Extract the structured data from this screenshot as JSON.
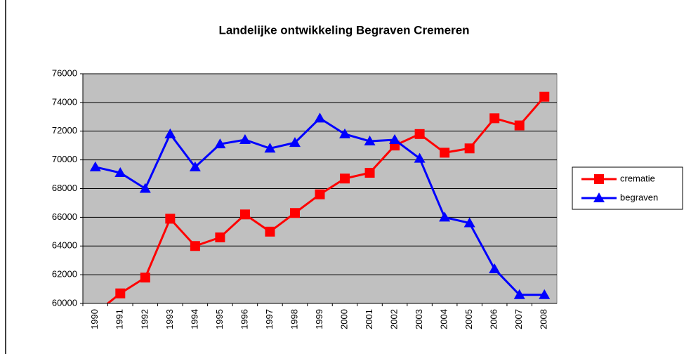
{
  "chart_data": {
    "type": "line",
    "title": "Landelijke ontwikkeling Begraven Cremeren",
    "categories": [
      "1990",
      "1991",
      "1992",
      "1993",
      "1994",
      "1995",
      "1996",
      "1997",
      "1998",
      "1999",
      "2000",
      "2001",
      "2002",
      "2003",
      "2004",
      "2005",
      "2006",
      "2007",
      "2008"
    ],
    "series": [
      {
        "name": "crematie",
        "color": "#ff0000",
        "marker": "square",
        "values": [
          59300,
          60700,
          61800,
          65900,
          64000,
          64600,
          66200,
          65000,
          66300,
          67600,
          68700,
          69100,
          71000,
          71800,
          70500,
          70800,
          72900,
          72400,
          74400
        ]
      },
      {
        "name": "begraven",
        "color": "#0000ff",
        "marker": "triangle",
        "values": [
          69500,
          69100,
          68000,
          71800,
          69500,
          71100,
          71400,
          70800,
          71200,
          72900,
          71800,
          71300,
          71400,
          70100,
          66000,
          65600,
          62400,
          60600,
          60600
        ]
      }
    ],
    "ylim": [
      60000,
      76000
    ],
    "yticks": [
      60000,
      62000,
      64000,
      66000,
      68000,
      70000,
      72000,
      74000,
      76000
    ],
    "grid": true,
    "legend": "right"
  }
}
